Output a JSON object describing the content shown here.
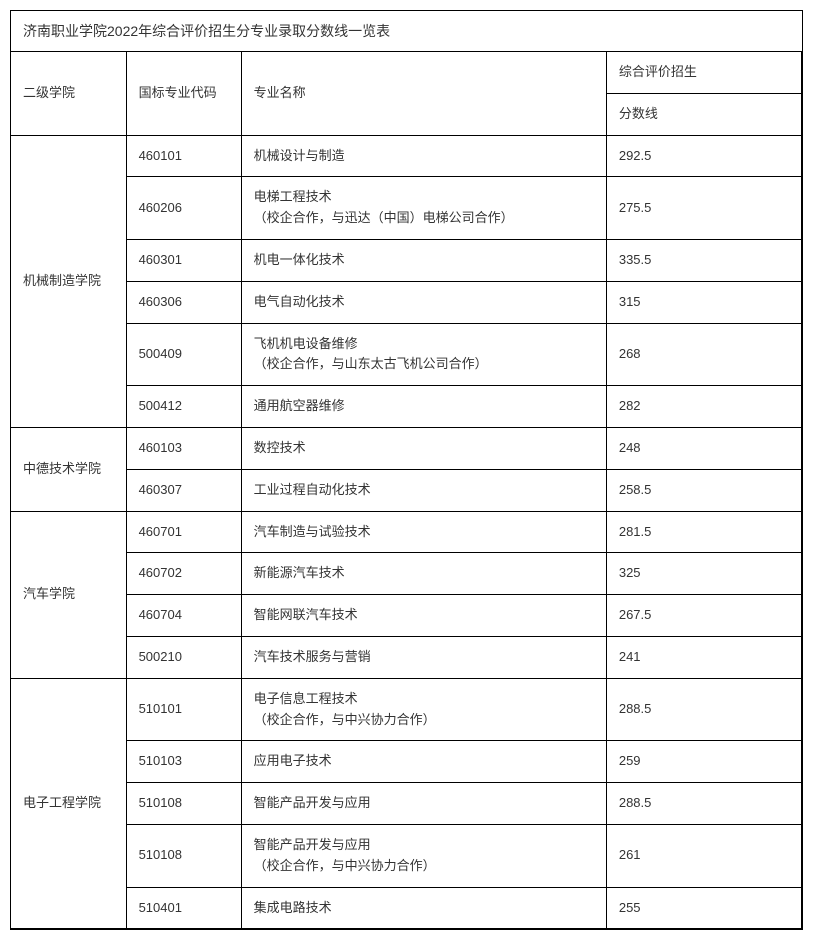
{
  "title": "济南职业学院2022年综合评价招生分专业录取分数线一览表",
  "headers": {
    "college": "二级学院",
    "code": "国标专业代码",
    "major": "专业名称",
    "scoreGroup": "综合评价招生",
    "scoreSub": "分数线"
  },
  "colleges": [
    {
      "name": "机械制造学院",
      "rows": [
        {
          "code": "460101",
          "major": "机械设计与制造",
          "score": "292.5"
        },
        {
          "code": "460206",
          "major": "电梯工程技术\n（校企合作，与迅达（中国）电梯公司合作）",
          "score": "275.5"
        },
        {
          "code": "460301",
          "major": "机电一体化技术",
          "score": "335.5"
        },
        {
          "code": "460306",
          "major": "电气自动化技术",
          "score": "315"
        },
        {
          "code": "500409",
          "major": "飞机机电设备维修\n（校企合作，与山东太古飞机公司合作）",
          "score": "268"
        },
        {
          "code": "500412",
          "major": "通用航空器维修",
          "score": "282"
        }
      ]
    },
    {
      "name": "中德技术学院",
      "rows": [
        {
          "code": "460103",
          "major": "数控技术",
          "score": "248"
        },
        {
          "code": "460307",
          "major": "工业过程自动化技术",
          "score": "258.5"
        }
      ]
    },
    {
      "name": "汽车学院",
      "rows": [
        {
          "code": "460701",
          "major": "汽车制造与试验技术",
          "score": "281.5"
        },
        {
          "code": "460702",
          "major": "新能源汽车技术",
          "score": "325"
        },
        {
          "code": "460704",
          "major": "智能网联汽车技术",
          "score": "267.5"
        },
        {
          "code": "500210",
          "major": "汽车技术服务与营销",
          "score": "241"
        }
      ]
    },
    {
      "name": "电子工程学院",
      "rows": [
        {
          "code": "510101",
          "major": "电子信息工程技术\n（校企合作，与中兴协力合作）",
          "score": "288.5"
        },
        {
          "code": "510103",
          "major": "应用电子技术",
          "score": "259"
        },
        {
          "code": "510108",
          "major": "智能产品开发与应用",
          "score": "288.5"
        },
        {
          "code": "510108",
          "major": "智能产品开发与应用\n（校企合作，与中兴协力合作）",
          "score": "261"
        },
        {
          "code": "510401",
          "major": "集成电路技术",
          "score": "255"
        }
      ]
    }
  ]
}
